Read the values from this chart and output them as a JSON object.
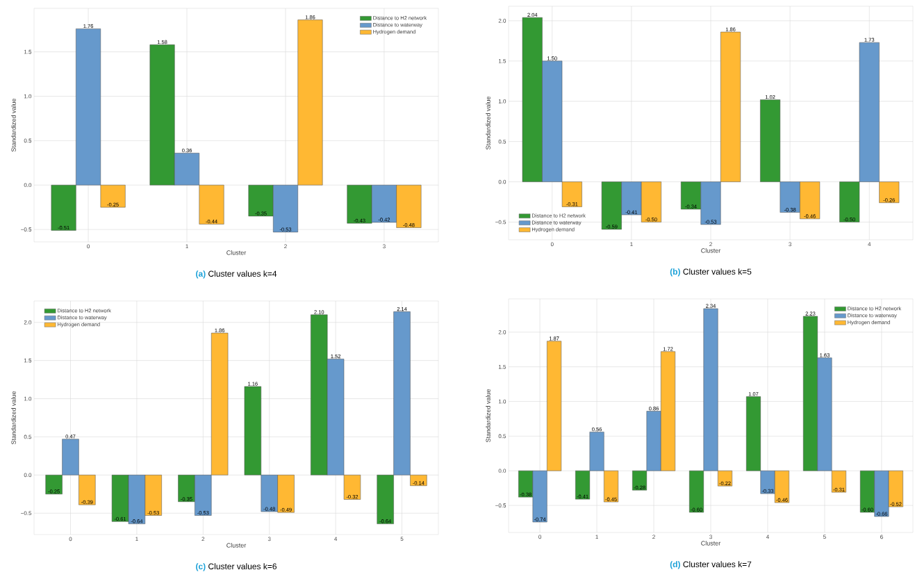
{
  "chart_data": [
    {
      "type": "bar",
      "title": "**(a)** Cluster values k=4",
      "xlabel": "Cluster",
      "ylabel": "Standardized value",
      "categories": [
        "0",
        "1",
        "2",
        "3"
      ],
      "series": [
        {
          "name": "Distance to H2 network",
          "color": "#339933",
          "values": [
            -0.51,
            1.58,
            -0.35,
            -0.43
          ],
          "value_labels": [
            "-0.51",
            "1.58",
            "-0.35",
            "-0.43"
          ]
        },
        {
          "name": "Distance to waterway",
          "color": "#6699cc",
          "values": [
            1.76,
            0.36,
            -0.53,
            -0.42
          ],
          "value_labels": [
            "1.76",
            "0.36",
            "-0.53",
            "-0.42"
          ]
        },
        {
          "name": "Hydrogen demand",
          "color": "#ffb833",
          "values": [
            -0.25,
            -0.44,
            1.86,
            -0.48
          ],
          "value_labels": [
            "-0.25",
            "-0.44",
            "1.86",
            "-0.48"
          ]
        }
      ],
      "ylim": [
        -0.64,
        1.99
      ],
      "yticks": [
        {
          "value": -0.5,
          "label": "−0.5"
        },
        {
          "value": 0,
          "label": "0.0"
        },
        {
          "value": 0.5,
          "label": "0.5"
        },
        {
          "value": 1,
          "label": "1.0"
        },
        {
          "value": 1.5,
          "label": "1.5"
        }
      ],
      "grid": true,
      "legend": "top right"
    },
    {
      "type": "bar",
      "title": "**(b)** Cluster values k=5",
      "xlabel": "Cluster",
      "ylabel": "Standardized value",
      "categories": [
        "0",
        "1",
        "2",
        "3",
        "4"
      ],
      "series": [
        {
          "name": "Distance to H2 network",
          "color": "#339933",
          "values": [
            2.04,
            -0.59,
            -0.34,
            1.02,
            -0.5
          ],
          "value_labels": [
            "2.04",
            "-0.59",
            "-0.34",
            "1.02",
            "-0.50"
          ]
        },
        {
          "name": "Distance to waterway",
          "color": "#6699cc",
          "values": [
            1.5,
            -0.41,
            -0.53,
            -0.38,
            1.73
          ],
          "value_labels": [
            "1.50",
            "-0.41",
            "-0.53",
            "-0.38",
            "1.73"
          ]
        },
        {
          "name": "Hydrogen demand",
          "color": "#ffb833",
          "values": [
            -0.31,
            -0.5,
            1.86,
            -0.46,
            -0.26
          ],
          "value_labels": [
            "-0.31",
            "-0.50",
            "1.86",
            "-0.46",
            "-0.26"
          ]
        }
      ],
      "ylim": [
        -0.72,
        2.18
      ],
      "yticks": [
        {
          "value": -0.5,
          "label": "−0.5"
        },
        {
          "value": 0,
          "label": "0.0"
        },
        {
          "value": 0.5,
          "label": "0.5"
        },
        {
          "value": 1,
          "label": "1.0"
        },
        {
          "value": 1.5,
          "label": "1.5"
        },
        {
          "value": 2,
          "label": "2.0"
        }
      ],
      "grid": true,
      "legend": "bottom left"
    },
    {
      "type": "bar",
      "title": "**(c)** Cluster values k=6",
      "xlabel": "Cluster",
      "ylabel": "Standardized value",
      "categories": [
        "0",
        "1",
        "2",
        "3",
        "4",
        "5"
      ],
      "series": [
        {
          "name": "Distance to H2 network",
          "color": "#339933",
          "values": [
            -0.25,
            -0.61,
            -0.35,
            1.16,
            2.1,
            -0.64
          ],
          "value_labels": [
            "-0.25",
            "-0.61",
            "-0.35",
            "1.16",
            "2.10",
            "-0.64"
          ]
        },
        {
          "name": "Distance to waterway",
          "color": "#6699cc",
          "values": [
            0.47,
            -0.64,
            -0.53,
            -0.48,
            1.52,
            2.14
          ],
          "value_labels": [
            "0.47",
            "-0.64",
            "-0.53",
            "-0.48",
            "1.52",
            "2.14"
          ]
        },
        {
          "name": "Hydrogen demand",
          "color": "#ffb833",
          "values": [
            -0.39,
            -0.53,
            1.86,
            -0.49,
            -0.32,
            -0.14
          ],
          "value_labels": [
            "-0.39",
            "-0.53",
            "1.86",
            "-0.49",
            "-0.32",
            "-0.14"
          ]
        }
      ],
      "ylim": [
        -0.78,
        2.28
      ],
      "yticks": [
        {
          "value": -0.5,
          "label": "−0.5"
        },
        {
          "value": 0,
          "label": "0.0"
        },
        {
          "value": 0.5,
          "label": "0.5"
        },
        {
          "value": 1,
          "label": "1.0"
        },
        {
          "value": 1.5,
          "label": "1.5"
        },
        {
          "value": 2,
          "label": "2.0"
        }
      ],
      "grid": true,
      "legend": "top left"
    },
    {
      "type": "bar",
      "title": "**(d)** Cluster values k=7",
      "xlabel": "Cluster",
      "ylabel": "Standardized value",
      "categories": [
        "0",
        "1",
        "2",
        "3",
        "4",
        "5",
        "6"
      ],
      "series": [
        {
          "name": "Distance to H2 network",
          "color": "#339933",
          "values": [
            -0.38,
            -0.41,
            -0.28,
            -0.6,
            1.07,
            2.23,
            -0.6
          ],
          "value_labels": [
            "-0.38",
            "-0.41",
            "-0.28",
            "-0.60",
            "1.07",
            "2.23",
            "-0.60"
          ]
        },
        {
          "name": "Distance to waterway",
          "color": "#6699cc",
          "values": [
            -0.74,
            0.56,
            0.86,
            2.34,
            -0.33,
            1.63,
            -0.66
          ],
          "value_labels": [
            "-0.74",
            "0.56",
            "0.86",
            "2.34",
            "-0.33",
            "1.63",
            "-0.66"
          ]
        },
        {
          "name": "Hydrogen demand",
          "color": "#ffb833",
          "values": [
            1.87,
            -0.45,
            1.72,
            -0.22,
            -0.46,
            -0.31,
            -0.52
          ],
          "value_labels": [
            "1.87",
            "-0.45",
            "1.72",
            "-0.22",
            "-0.46",
            "-0.31",
            "-0.52"
          ]
        }
      ],
      "ylim": [
        -0.89,
        2.48
      ],
      "yticks": [
        {
          "value": -0.5,
          "label": "−0.5"
        },
        {
          "value": 0,
          "label": "0.0"
        },
        {
          "value": 0.5,
          "label": "0.5"
        },
        {
          "value": 1,
          "label": "1.0"
        },
        {
          "value": 1.5,
          "label": "1.5"
        },
        {
          "value": 2,
          "label": "2.0"
        }
      ],
      "grid": true,
      "legend": "top right"
    }
  ]
}
